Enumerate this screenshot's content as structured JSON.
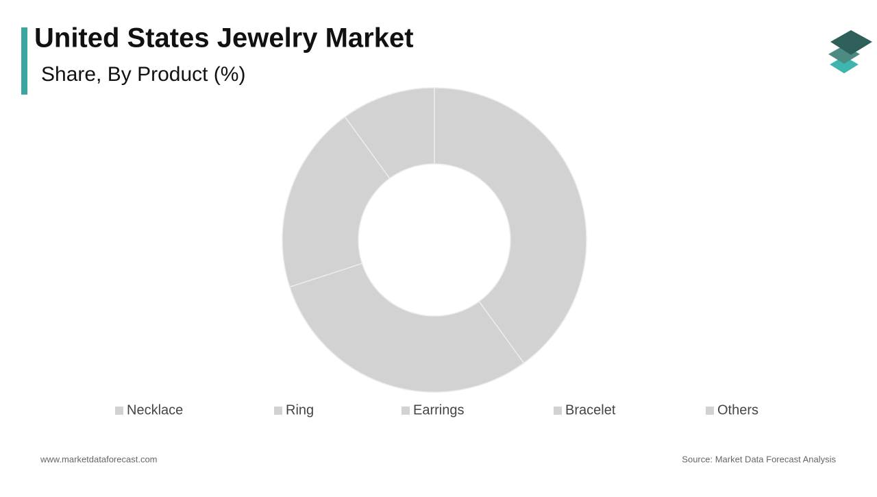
{
  "chart_data": {
    "type": "donut",
    "title": "United States Jewelry Market",
    "subtitle": "Share, By Product (%)",
    "categories": [
      "Necklace",
      "Ring",
      "Earrings",
      "Bracelet",
      "Others"
    ],
    "values": [
      40,
      30,
      20,
      10,
      0
    ],
    "colors": [
      "#d3d2d2",
      "#d3d2d2",
      "#d3d2d2",
      "#d3d2d2",
      "#d3d2d2"
    ],
    "legend": "bottom"
  },
  "footer": {
    "website": "www.marketdataforecast.com",
    "source": "Source: Market Data Forecast Analysis"
  }
}
